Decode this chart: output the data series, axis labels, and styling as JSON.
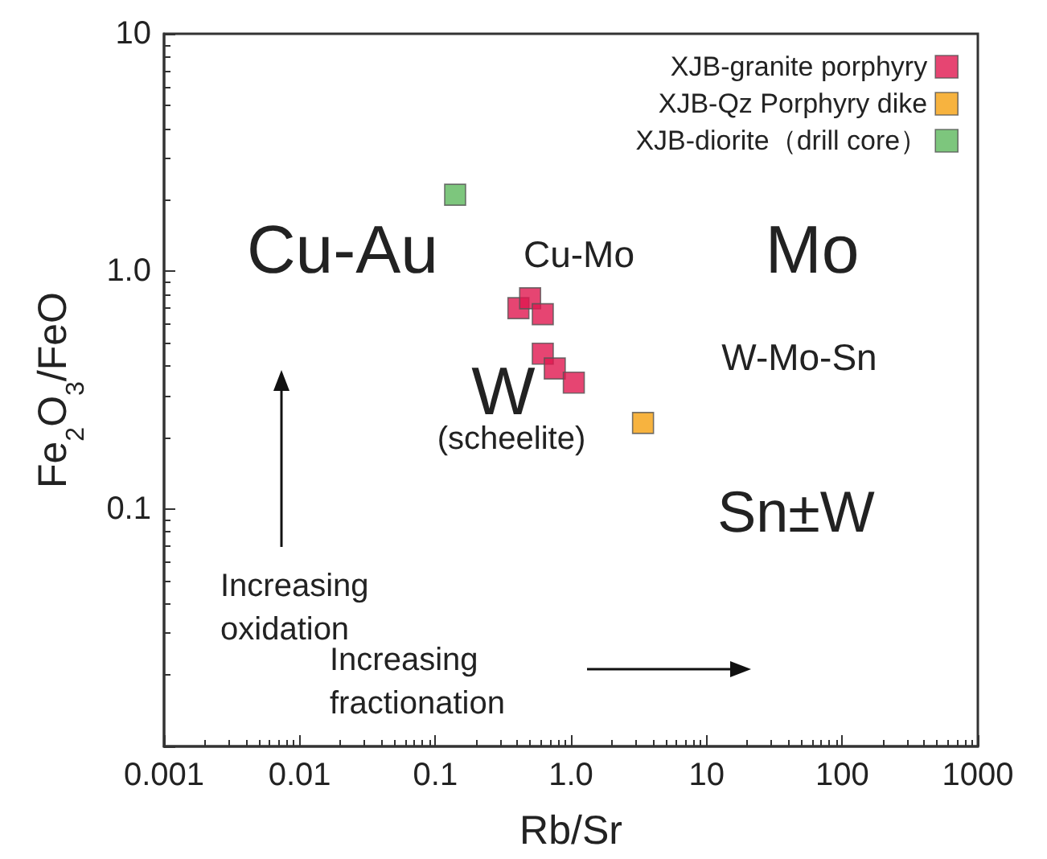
{
  "chart_data": {
    "type": "scatter",
    "xlabel": "Rb/Sr",
    "ylabel": "Fe$_{2}$O$_{3}$/FeO",
    "log": "xy",
    "marker": "square",
    "legend": "top right",
    "grid": false,
    "xlim": [
      0.001,
      1000
    ],
    "ylim": [
      0.01,
      10
    ],
    "xticks": [
      0.001,
      0.01,
      0.1,
      {
        "value": 1,
        "label": "1.0"
      },
      10,
      100,
      1000
    ],
    "yticks": [
      {
        "value": 0.01,
        "label": null
      },
      0.1,
      {
        "value": 1,
        "label": "1.0"
      },
      10
    ],
    "series": [
      {
        "name": "XJB-granite porphyry",
        "color": "#e0174f",
        "x": [
          0.41,
          0.5,
          0.62,
          0.62,
          0.76,
          1.05
        ],
        "values": [
          0.7,
          0.77,
          0.66,
          0.45,
          0.39,
          0.34
        ]
      },
      {
        "name": "XJB-Qz Porphyry dike",
        "color": "#f5a00f",
        "x": [
          3.4
        ],
        "values": [
          0.23
        ]
      },
      {
        "name": "XJB-diorite（drill core）",
        "color": "#5cb85c",
        "x": [
          0.14
        ],
        "values": [
          2.1
        ]
      }
    ],
    "annotations": [
      "Cu-Au",
      "Cu-Mo",
      "Mo",
      "W-Mo-Sn",
      "W",
      "(scheelite)",
      "Sn±W",
      "Increasing\noxidation",
      "Increasing\nfractionation"
    ]
  }
}
